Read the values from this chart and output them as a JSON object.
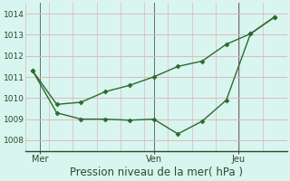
{
  "line1_x": [
    0,
    1,
    2,
    3,
    4,
    5,
    6,
    7,
    8,
    9,
    10
  ],
  "line1_y": [
    1011.3,
    1009.7,
    1009.8,
    1010.3,
    1010.6,
    1011.0,
    1011.5,
    1011.75,
    1012.55,
    1013.05,
    1013.85
  ],
  "line2_x": [
    0,
    1,
    2,
    3,
    4,
    5,
    6,
    7,
    8,
    9,
    10
  ],
  "line2_y": [
    1011.3,
    1009.3,
    1009.0,
    1009.0,
    1008.95,
    1009.0,
    1008.3,
    1008.9,
    1009.9,
    1013.05,
    1013.85
  ],
  "line_color": "#2d6a2d",
  "background_color": "#d8f5ef",
  "grid_color_h": "#ddbaba",
  "grid_color_v": "#ddbaba",
  "xlabel": "Pression niveau de la mer( hPa )",
  "xlabel_fontsize": 8.5,
  "yticks": [
    1008,
    1009,
    1010,
    1011,
    1012,
    1013,
    1014
  ],
  "ylim": [
    1007.5,
    1014.5
  ],
  "xlim": [
    -0.3,
    10.5
  ],
  "xtick_positions": [
    0.3,
    5.0,
    8.5
  ],
  "xtick_labels": [
    "Mer",
    "Ven",
    "Jeu"
  ],
  "vline_positions": [
    0.3,
    5.0,
    8.5
  ],
  "marker": "D",
  "marker_size": 2.5,
  "linewidth": 1.0
}
